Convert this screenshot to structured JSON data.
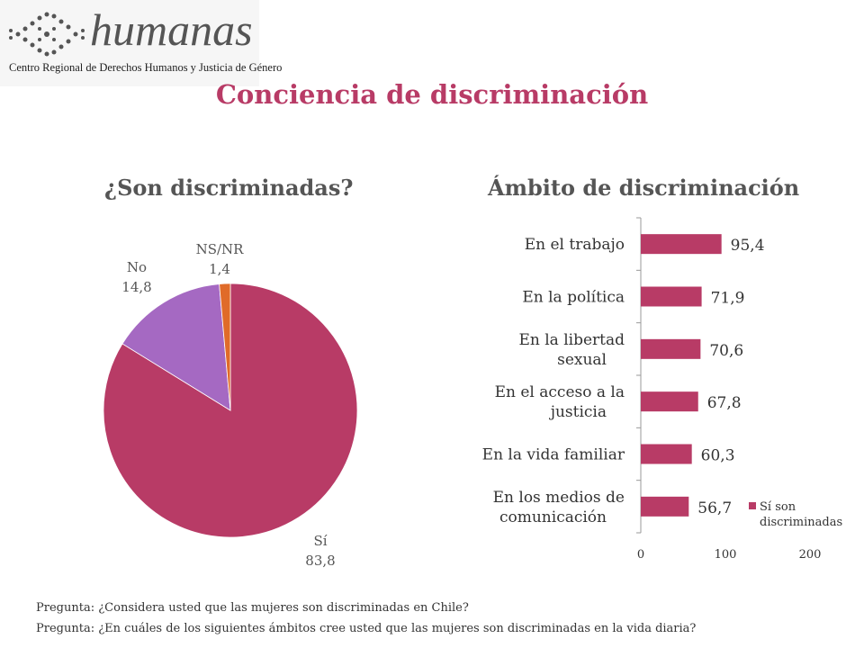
{
  "logo": {
    "wordmark": "humanas",
    "organization": "Centro Regional de Derechos Humanos y Justicia de Género"
  },
  "page": {
    "title": "Conciencia de discriminación",
    "question1": "Pregunta: ¿Considera usted que las mujeres son discriminadas en Chile?",
    "question2": "Pregunta: ¿En cuáles de los siguientes ámbitos cree usted que las mujeres son discriminadas en la vida diaria?"
  },
  "colors": {
    "accent": "#b83b66",
    "purple": "#a569c2",
    "orange": "#e06b29",
    "text": "#555555"
  },
  "chart_data": [
    {
      "type": "pie",
      "title": "¿Son discriminadas?",
      "slices": [
        {
          "label": "Sí",
          "value_text": "83,8",
          "value": 83.8,
          "color": "#b83b66"
        },
        {
          "label": "No",
          "value_text": "14,8",
          "value": 14.8,
          "color": "#a569c2"
        },
        {
          "label": "NS/NR",
          "value_text": "1,4",
          "value": 1.4,
          "color": "#e06b29"
        }
      ]
    },
    {
      "type": "bar",
      "orientation": "horizontal",
      "title": "Ámbito de discriminación",
      "categories": [
        [
          "En el trabajo"
        ],
        [
          "En la política"
        ],
        [
          "En la libertad",
          "sexual"
        ],
        [
          "En el acceso a la",
          "justicia"
        ],
        [
          "En la vida familiar"
        ],
        [
          "En los medios de",
          "comunicación"
        ]
      ],
      "values": [
        95.4,
        71.9,
        70.6,
        67.8,
        60.3,
        56.7
      ],
      "value_labels": [
        "95,4",
        "71,9",
        "70,6",
        "67,8",
        "60,3",
        "56,7"
      ],
      "series": [
        {
          "name": [
            "Sí son",
            "discriminadas"
          ],
          "color": "#b83b66"
        }
      ],
      "xlim": [
        0,
        200
      ],
      "xticks": [
        "0",
        "100",
        "200"
      ],
      "legend": "bottom-right"
    }
  ]
}
